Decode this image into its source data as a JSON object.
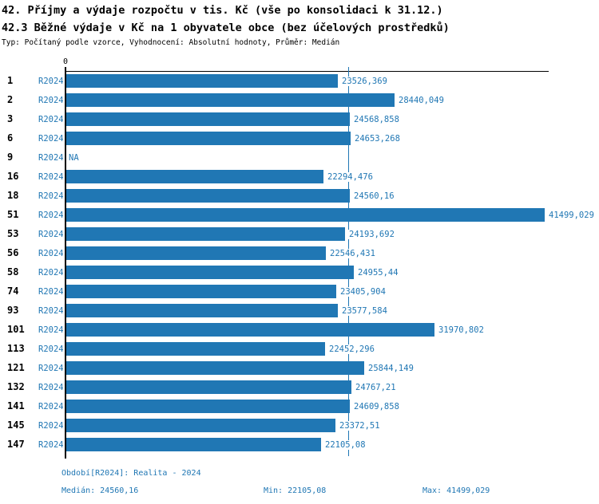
{
  "title": "42. Příjmy a výdaje rozpočtu v tis. Kč (vše po konsolidaci k 31.12.)",
  "subtitle": "42.3 Běžné výdaje v Kč na 1 obyvatele obce (bez účelových prostředků)",
  "meta": "Typ: Počítaný podle vzorce, Vyhodnocení: Absolutní hodnoty, Průměr: Medián",
  "colors": {
    "bar": "#2077b4",
    "text_blue": "#2077b4",
    "axis": "#000000",
    "background": "#ffffff"
  },
  "chart_data": {
    "type": "bar",
    "orientation": "horizontal",
    "title": "42.3 Běžné výdaje v Kč na 1 obyvatele obce (bez účelových prostředků)",
    "xlabel": "",
    "ylabel": "",
    "xlim": [
      0,
      41499.029
    ],
    "x_tick_labels": [
      "0"
    ],
    "grid": false,
    "legend_position": "none",
    "series_label": "R2024",
    "categories": [
      "1",
      "2",
      "3",
      "6",
      "9",
      "16",
      "18",
      "51",
      "53",
      "56",
      "58",
      "74",
      "93",
      "101",
      "113",
      "121",
      "132",
      "141",
      "145",
      "147"
    ],
    "values": [
      23526.369,
      28440.049,
      24568.858,
      24653.268,
      null,
      22294.476,
      24560.16,
      41499.029,
      24193.692,
      22546.431,
      24955.44,
      23405.904,
      23577.584,
      31970.802,
      22452.296,
      25844.149,
      24767.21,
      24609.858,
      23372.51,
      22105.08
    ],
    "value_labels": [
      "23526,369",
      "28440,049",
      "24568,858",
      "24653,268",
      "NA",
      "22294,476",
      "24560,16",
      "41499,029",
      "24193,692",
      "22546,431",
      "24955,44",
      "23405,904",
      "23577,584",
      "31970,802",
      "22452,296",
      "25844,149",
      "24767,21",
      "24609,858",
      "23372,51",
      "22105,08"
    ],
    "na_text": "NA",
    "median_line_value": 24560.16
  },
  "footer": {
    "period": "Období[R2024]: Realita - 2024",
    "median": "Medián: 24560,16",
    "min": "Min: 22105,08",
    "max": "Max: 41499,029"
  }
}
